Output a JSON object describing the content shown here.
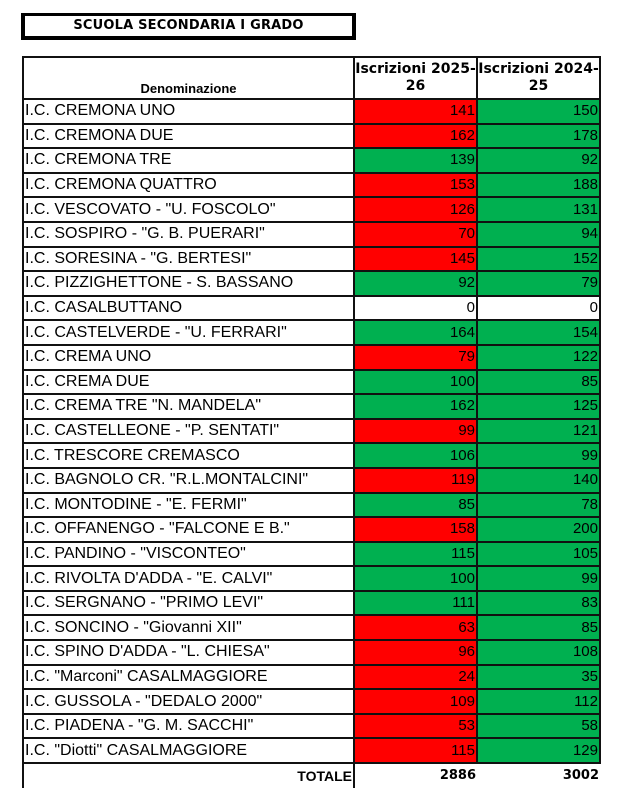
{
  "title": "SCUOLA SECONDARIA I GRADO",
  "headers": {
    "name": "Denominazione",
    "col1": "Iscrizioni 2025-26",
    "col2": "Iscrizioni 2024-25"
  },
  "colors": {
    "red": "#ff0000",
    "green": "#00b050",
    "white": "#ffffff"
  },
  "rows": [
    {
      "name": "I.C. CREMONA UNO",
      "v1": "141",
      "v2": "150",
      "c1": "red",
      "c2": "green"
    },
    {
      "name": "I.C. CREMONA DUE",
      "v1": "162",
      "v2": "178",
      "c1": "red",
      "c2": "green"
    },
    {
      "name": "I.C. CREMONA TRE",
      "v1": "139",
      "v2": "92",
      "c1": "green",
      "c2": "green"
    },
    {
      "name": "I.C. CREMONA QUATTRO",
      "v1": "153",
      "v2": "188",
      "c1": "red",
      "c2": "green"
    },
    {
      "name": "I.C. VESCOVATO - \"U. FOSCOLO\"",
      "v1": "126",
      "v2": "131",
      "c1": "red",
      "c2": "green"
    },
    {
      "name": "I.C. SOSPIRO - \"G. B. PUERARI\"",
      "v1": "70",
      "v2": "94",
      "c1": "red",
      "c2": "green"
    },
    {
      "name": "I.C. SORESINA - \"G. BERTESI\"",
      "v1": "145",
      "v2": "152",
      "c1": "red",
      "c2": "green"
    },
    {
      "name": "I.C. PIZZIGHETTONE - S. BASSANO",
      "v1": "92",
      "v2": "79",
      "c1": "green",
      "c2": "green"
    },
    {
      "name": "I.C. CASALBUTTANO",
      "v1": "0",
      "v2": "0",
      "c1": "white",
      "c2": "white"
    },
    {
      "name": "I.C. CASTELVERDE - \"U. FERRARI\"",
      "v1": "164",
      "v2": "154",
      "c1": "green",
      "c2": "green"
    },
    {
      "name": "I.C. CREMA UNO",
      "v1": "79",
      "v2": "122",
      "c1": "red",
      "c2": "green"
    },
    {
      "name": "I.C. CREMA DUE",
      "v1": "100",
      "v2": "85",
      "c1": "green",
      "c2": "green"
    },
    {
      "name": "I.C. CREMA TRE  \"N. MANDELA\"",
      "v1": "162",
      "v2": "125",
      "c1": "green",
      "c2": "green"
    },
    {
      "name": "I.C. CASTELLEONE - \"P. SENTATI\"",
      "v1": "99",
      "v2": "121",
      "c1": "red",
      "c2": "green"
    },
    {
      "name": "I.C. TRESCORE CREMASCO",
      "v1": "106",
      "v2": "99",
      "c1": "green",
      "c2": "green"
    },
    {
      "name": "I.C. BAGNOLO CR. \"R.L.MONTALCINI\"",
      "v1": "119",
      "v2": "140",
      "c1": "red",
      "c2": "green"
    },
    {
      "name": "I.C. MONTODINE - \"E. FERMI\"",
      "v1": "85",
      "v2": "78",
      "c1": "green",
      "c2": "green"
    },
    {
      "name": "I.C. OFFANENGO - \"FALCONE E B.\"",
      "v1": "158",
      "v2": "200",
      "c1": "red",
      "c2": "green"
    },
    {
      "name": "I.C. PANDINO - \"VISCONTEO\"",
      "v1": "115",
      "v2": "105",
      "c1": "green",
      "c2": "green"
    },
    {
      "name": "I.C. RIVOLTA D'ADDA - \"E. CALVI\"",
      "v1": "100",
      "v2": "99",
      "c1": "green",
      "c2": "green"
    },
    {
      "name": "I.C. SERGNANO - \"PRIMO LEVI\"",
      "v1": "111",
      "v2": "83",
      "c1": "green",
      "c2": "green"
    },
    {
      "name": "I.C. SONCINO - \"Giovanni XII\"",
      "v1": "63",
      "v2": "85",
      "c1": "red",
      "c2": "green"
    },
    {
      "name": "I.C. SPINO D'ADDA - \"L. CHIESA\"",
      "v1": "96",
      "v2": "108",
      "c1": "red",
      "c2": "green"
    },
    {
      "name": "I.C. \"Marconi\" CASALMAGGIORE",
      "v1": "24",
      "v2": "35",
      "c1": "red",
      "c2": "green"
    },
    {
      "name": "I.C. GUSSOLA - \"DEDALO 2000\"",
      "v1": "109",
      "v2": "112",
      "c1": "red",
      "c2": "green"
    },
    {
      "name": "I.C. PIADENA - \"G. M. SACCHI\"",
      "v1": "53",
      "v2": "58",
      "c1": "red",
      "c2": "green"
    },
    {
      "name": "I.C. \"Diotti\" CASALMAGGIORE",
      "v1": "115",
      "v2": "129",
      "c1": "red",
      "c2": "green"
    }
  ],
  "total": {
    "label": "TOTALE",
    "v1": "2886",
    "v2": "3002"
  }
}
